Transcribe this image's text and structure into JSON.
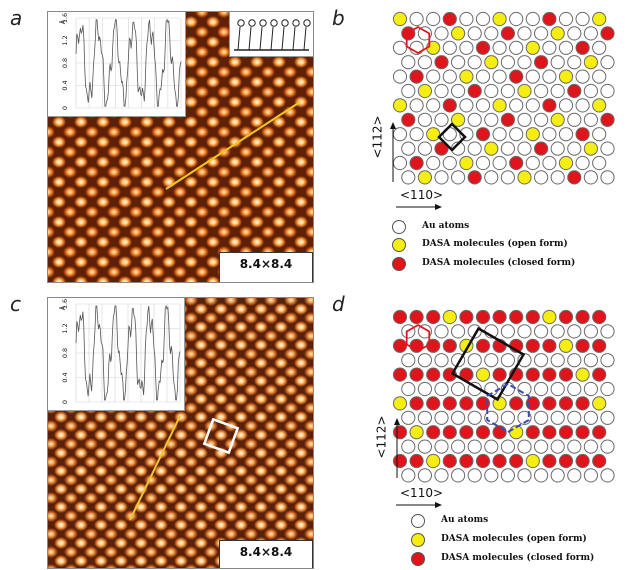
{
  "panels": {
    "a": {
      "letter": "a"
    },
    "b": {
      "letter": "b"
    },
    "c": {
      "letter": "c"
    },
    "d": {
      "letter": "d"
    }
  },
  "stm_images": [
    {
      "scale_prefix": "8.4×8.4 nm",
      "scale_exp": "2",
      "profile_unit": "Å",
      "profile_ticks": [
        "0",
        "0.4",
        "0.8",
        "1.2",
        "1.6"
      ]
    },
    {
      "scale_prefix": "8.4×8.4 nm",
      "scale_exp": "2",
      "profile_unit": "Å",
      "profile_ticks": [
        "0",
        "0.4",
        "0.8",
        "1.2",
        "1.6"
      ]
    }
  ],
  "models": [
    {
      "axis_horizontal": "<110>",
      "axis_vertical": "<112>"
    },
    {
      "axis_horizontal": "<110>",
      "axis_vertical": "<112>"
    }
  ],
  "legend": {
    "au": "Au atoms",
    "open": "DASA molecules (open form)",
    "closed": "DASA molecules (closed form)"
  },
  "colors": {
    "au_fill": "#ffffff",
    "open_fill": "#f6ee10",
    "closed_fill": "#e0141b",
    "profile_line": "#f2c81a",
    "unit_cell_b": "#111111",
    "hex_outline": "#e0141b",
    "hex_outline_blue": "#3b4bb4"
  }
}
